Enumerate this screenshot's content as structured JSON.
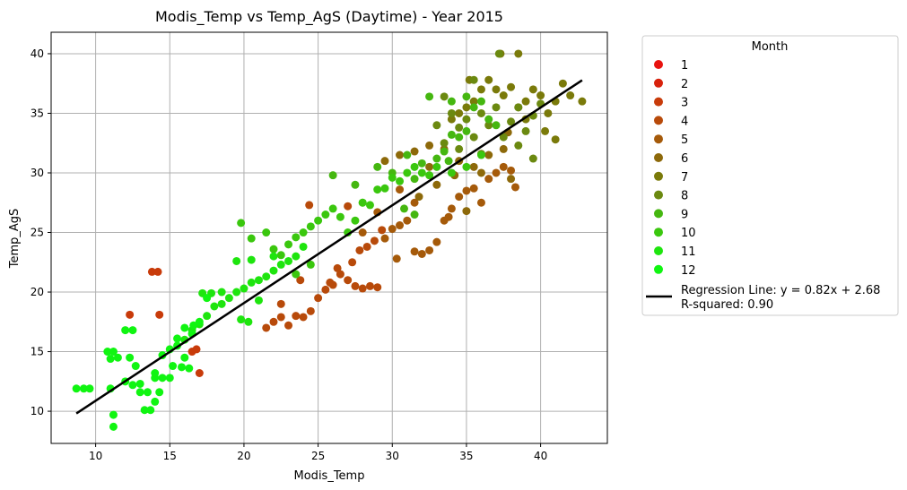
{
  "chart_data": {
    "type": "scatter",
    "title": "Modis_Temp vs Temp_AgS (Daytime) - Year 2015",
    "xlabel": "Modis_Temp",
    "ylabel": "Temp_AgS",
    "xlim": [
      7.0,
      44.5
    ],
    "ylim": [
      7.3,
      41.8
    ],
    "xticks": [
      10,
      15,
      20,
      25,
      30,
      35,
      40
    ],
    "yticks": [
      10,
      15,
      20,
      25,
      30,
      35,
      40
    ],
    "grid": true,
    "legend": {
      "title": "Month",
      "placement": "outside-right",
      "entries": [
        "1",
        "2",
        "3",
        "4",
        "5",
        "6",
        "7",
        "8",
        "9",
        "10",
        "11",
        "12"
      ],
      "colors": [
        "#e8130f",
        "#d8220c",
        "#c83b0a",
        "#b84a0a",
        "#a55a0a",
        "#8d690a",
        "#7a7a0a",
        "#6b8910",
        "#45b710",
        "#3ac70e",
        "#1ee50e",
        "#10f511"
      ],
      "regression_label_line1": "Regression Line: y = 0.82x + 2.68",
      "regression_label_line2": "R-squared: 0.90"
    },
    "regression": {
      "slope": 0.82,
      "intercept": 2.68,
      "x_range": [
        8.7,
        42.8
      ],
      "color": "#000000"
    },
    "series": [
      {
        "name": "3",
        "color": "#c83b0a",
        "points": [
          [
            13.8,
            21.7
          ],
          [
            14.2,
            21.7
          ],
          [
            12.3,
            18.1
          ],
          [
            14.3,
            18.1
          ],
          [
            16.5,
            15.0
          ],
          [
            17.0,
            13.2
          ],
          [
            16.8,
            15.2
          ]
        ]
      },
      {
        "name": "4",
        "color": "#b84a0a",
        "points": [
          [
            21.5,
            17.0
          ],
          [
            22.0,
            17.5
          ],
          [
            22.5,
            17.9
          ],
          [
            23.0,
            17.2
          ],
          [
            23.5,
            18.0
          ],
          [
            24.0,
            17.9
          ],
          [
            24.5,
            18.4
          ],
          [
            25.0,
            19.5
          ],
          [
            25.5,
            20.2
          ],
          [
            26.0,
            20.6
          ],
          [
            26.5,
            21.5
          ],
          [
            27.0,
            21.0
          ],
          [
            27.5,
            20.5
          ],
          [
            28.0,
            20.3
          ],
          [
            28.5,
            20.5
          ],
          [
            29.0,
            20.4
          ],
          [
            27.3,
            22.5
          ],
          [
            27.8,
            23.5
          ],
          [
            28.3,
            23.8
          ],
          [
            28.8,
            24.3
          ],
          [
            29.3,
            25.2
          ],
          [
            27.0,
            27.2
          ],
          [
            24.4,
            27.3
          ],
          [
            26.3,
            22.0
          ],
          [
            25.8,
            20.8
          ],
          [
            23.8,
            21.0
          ],
          [
            22.5,
            19.0
          ]
        ]
      },
      {
        "name": "5",
        "color": "#a55a0a",
        "points": [
          [
            29.5,
            24.5
          ],
          [
            30.0,
            25.3
          ],
          [
            30.5,
            25.6
          ],
          [
            31.0,
            26.0
          ],
          [
            31.5,
            23.4
          ],
          [
            32.0,
            23.2
          ],
          [
            32.5,
            23.5
          ],
          [
            33.0,
            24.2
          ],
          [
            33.5,
            26.0
          ],
          [
            34.0,
            27.0
          ],
          [
            34.5,
            28.0
          ],
          [
            35.0,
            28.5
          ],
          [
            35.5,
            28.7
          ],
          [
            36.0,
            27.5
          ],
          [
            36.5,
            29.5
          ],
          [
            37.0,
            30.0
          ],
          [
            37.5,
            30.5
          ],
          [
            38.0,
            30.2
          ],
          [
            38.3,
            28.8
          ],
          [
            33.8,
            26.3
          ],
          [
            31.5,
            27.5
          ],
          [
            30.5,
            28.6
          ],
          [
            29.0,
            26.7
          ],
          [
            28.0,
            25.0
          ],
          [
            30.3,
            22.8
          ]
        ]
      },
      {
        "name": "6",
        "color": "#8d690a",
        "points": [
          [
            29.5,
            31.0
          ],
          [
            30.5,
            31.5
          ],
          [
            31.5,
            31.8
          ],
          [
            32.5,
            32.3
          ],
          [
            33.5,
            32.0
          ],
          [
            34.5,
            31.0
          ],
          [
            35.5,
            30.5
          ],
          [
            36.5,
            31.5
          ],
          [
            37.5,
            32.0
          ],
          [
            38.0,
            29.5
          ],
          [
            35.0,
            26.8
          ],
          [
            34.2,
            29.8
          ],
          [
            31.8,
            28.0
          ],
          [
            32.5,
            30.5
          ],
          [
            36.0,
            30.0
          ],
          [
            37.8,
            33.4
          ],
          [
            33.0,
            29.0
          ]
        ]
      },
      {
        "name": "7",
        "color": "#7a7a0a",
        "points": [
          [
            34.0,
            34.5
          ],
          [
            34.5,
            35.0
          ],
          [
            35.0,
            35.5
          ],
          [
            35.5,
            36.0
          ],
          [
            36.0,
            37.0
          ],
          [
            36.5,
            37.8
          ],
          [
            37.0,
            37.0
          ],
          [
            37.5,
            36.5
          ],
          [
            38.0,
            37.2
          ],
          [
            38.5,
            35.5
          ],
          [
            39.0,
            36.0
          ],
          [
            39.5,
            37.0
          ],
          [
            40.0,
            36.5
          ],
          [
            40.5,
            35.0
          ],
          [
            41.0,
            36.0
          ],
          [
            41.5,
            37.5
          ],
          [
            42.0,
            36.5
          ],
          [
            42.8,
            36.0
          ],
          [
            37.3,
            40.0
          ],
          [
            38.5,
            40.0
          ],
          [
            35.2,
            37.8
          ],
          [
            40.3,
            33.5
          ],
          [
            41.0,
            32.8
          ],
          [
            39.0,
            34.5
          ]
        ]
      },
      {
        "name": "8",
        "color": "#6b8910",
        "points": [
          [
            33.0,
            34.0
          ],
          [
            33.5,
            36.4
          ],
          [
            34.0,
            35.0
          ],
          [
            34.5,
            33.8
          ],
          [
            35.0,
            34.5
          ],
          [
            35.5,
            33.0
          ],
          [
            36.0,
            35.0
          ],
          [
            36.5,
            34.0
          ],
          [
            37.0,
            35.5
          ],
          [
            37.5,
            33.0
          ],
          [
            38.0,
            34.3
          ],
          [
            38.5,
            35.5
          ],
          [
            39.0,
            33.5
          ],
          [
            39.5,
            34.8
          ],
          [
            40.0,
            35.8
          ],
          [
            33.5,
            32.5
          ],
          [
            34.5,
            32.0
          ],
          [
            36.0,
            31.6
          ],
          [
            38.5,
            32.3
          ],
          [
            39.5,
            31.2
          ],
          [
            37.2,
            40.0
          ],
          [
            35.5,
            37.8
          ]
        ]
      },
      {
        "name": "9",
        "color": "#45b710",
        "points": [
          [
            26.0,
            29.8
          ],
          [
            27.5,
            29.0
          ],
          [
            28.0,
            27.5
          ],
          [
            29.0,
            30.5
          ],
          [
            30.0,
            30.0
          ],
          [
            31.0,
            31.5
          ],
          [
            31.5,
            29.5
          ],
          [
            32.0,
            30.8
          ],
          [
            33.0,
            31.2
          ],
          [
            33.5,
            31.8
          ],
          [
            34.0,
            33.2
          ],
          [
            34.5,
            33.0
          ],
          [
            35.0,
            33.5
          ],
          [
            35.5,
            35.5
          ],
          [
            36.0,
            36.0
          ],
          [
            36.5,
            34.5
          ],
          [
            37.0,
            34.0
          ],
          [
            32.5,
            36.4
          ],
          [
            34.0,
            36.0
          ],
          [
            35.0,
            36.4
          ],
          [
            30.8,
            27.0
          ],
          [
            31.5,
            26.5
          ],
          [
            33.8,
            31.0
          ]
        ]
      },
      {
        "name": "10",
        "color": "#3ac70e",
        "points": [
          [
            20.5,
            24.5
          ],
          [
            21.5,
            25.0
          ],
          [
            22.0,
            23.6
          ],
          [
            22.5,
            23.1
          ],
          [
            23.0,
            24.0
          ],
          [
            23.5,
            24.6
          ],
          [
            24.0,
            25.0
          ],
          [
            24.5,
            25.5
          ],
          [
            25.0,
            26.0
          ],
          [
            25.5,
            26.5
          ],
          [
            26.0,
            27.0
          ],
          [
            26.5,
            26.3
          ],
          [
            27.0,
            25.0
          ],
          [
            27.5,
            26.0
          ],
          [
            28.0,
            27.5
          ],
          [
            28.5,
            27.3
          ],
          [
            29.0,
            28.6
          ],
          [
            29.5,
            28.7
          ],
          [
            30.0,
            29.6
          ],
          [
            30.5,
            29.3
          ],
          [
            31.0,
            30.0
          ],
          [
            31.5,
            30.5
          ],
          [
            32.0,
            30.0
          ],
          [
            32.5,
            29.8
          ],
          [
            33.0,
            30.5
          ],
          [
            34.0,
            30.0
          ],
          [
            35.0,
            30.5
          ],
          [
            36.0,
            31.5
          ],
          [
            24.5,
            22.3
          ],
          [
            23.5,
            21.5
          ],
          [
            19.8,
            25.8
          ]
        ]
      },
      {
        "name": "11",
        "color": "#1ee50e",
        "points": [
          [
            16.0,
            16.0
          ],
          [
            16.5,
            16.8
          ],
          [
            17.0,
            17.3
          ],
          [
            17.5,
            18.0
          ],
          [
            18.0,
            18.8
          ],
          [
            18.5,
            19.0
          ],
          [
            19.0,
            19.5
          ],
          [
            19.5,
            20.0
          ],
          [
            20.0,
            20.3
          ],
          [
            20.5,
            20.8
          ],
          [
            21.0,
            21.0
          ],
          [
            21.5,
            21.3
          ],
          [
            22.0,
            21.8
          ],
          [
            22.5,
            22.3
          ],
          [
            23.0,
            22.6
          ],
          [
            23.5,
            23.0
          ],
          [
            24.0,
            23.8
          ],
          [
            20.5,
            22.7
          ],
          [
            19.8,
            17.7
          ],
          [
            20.3,
            17.5
          ],
          [
            21.0,
            19.3
          ],
          [
            22.0,
            23.0
          ],
          [
            17.2,
            19.9
          ],
          [
            17.8,
            19.9
          ],
          [
            18.5,
            20.0
          ],
          [
            19.5,
            22.6
          ]
        ]
      },
      {
        "name": "12",
        "color": "#10f511",
        "points": [
          [
            8.7,
            11.9
          ],
          [
            9.2,
            11.9
          ],
          [
            9.6,
            11.9
          ],
          [
            10.8,
            15.0
          ],
          [
            11.2,
            15.0
          ],
          [
            11.0,
            14.4
          ],
          [
            11.5,
            14.5
          ],
          [
            12.0,
            12.5
          ],
          [
            11.0,
            11.9
          ],
          [
            11.2,
            9.7
          ],
          [
            11.2,
            8.7
          ],
          [
            12.0,
            16.8
          ],
          [
            12.5,
            16.8
          ],
          [
            12.5,
            12.2
          ],
          [
            13.0,
            11.6
          ],
          [
            13.5,
            11.6
          ],
          [
            13.3,
            10.1
          ],
          [
            13.7,
            10.1
          ],
          [
            14.0,
            10.8
          ],
          [
            14.3,
            11.6
          ],
          [
            14.0,
            12.8
          ],
          [
            14.5,
            12.8
          ],
          [
            15.0,
            12.8
          ],
          [
            14.5,
            14.7
          ],
          [
            15.0,
            15.2
          ],
          [
            15.5,
            15.5
          ],
          [
            15.2,
            13.8
          ],
          [
            15.8,
            13.7
          ],
          [
            16.3,
            13.6
          ],
          [
            16.0,
            14.5
          ],
          [
            16.5,
            16.5
          ],
          [
            16.0,
            17.0
          ],
          [
            16.6,
            17.2
          ],
          [
            17.0,
            17.5
          ],
          [
            17.5,
            19.5
          ],
          [
            15.5,
            16.1
          ],
          [
            14.0,
            13.2
          ],
          [
            13.0,
            12.3
          ],
          [
            12.3,
            14.5
          ],
          [
            12.7,
            13.8
          ]
        ]
      }
    ]
  }
}
